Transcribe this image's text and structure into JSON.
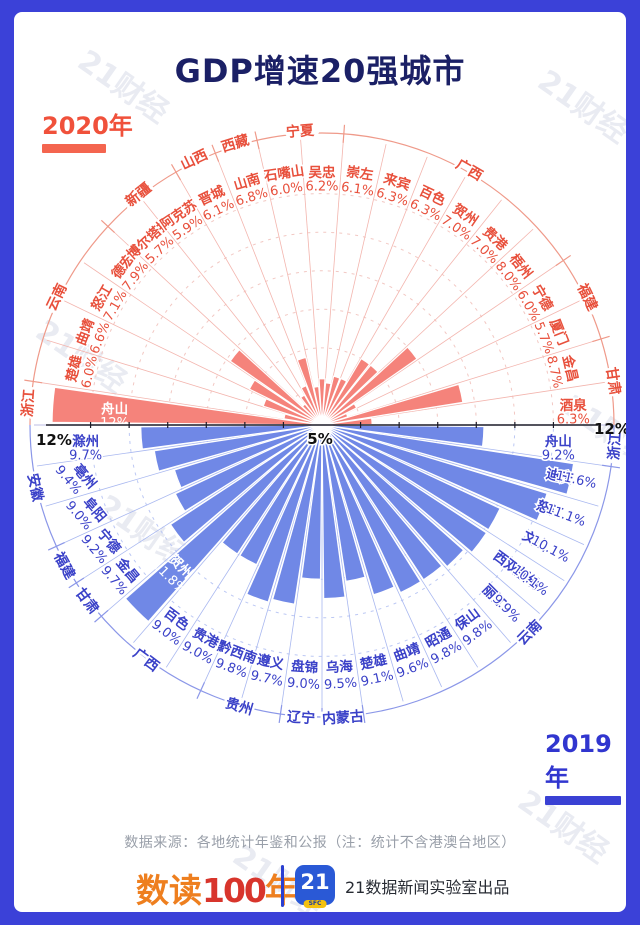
{
  "title": "GDP增速20强城市",
  "watermark": "21财经",
  "top_year": "2020年",
  "bottom_year": "2019年",
  "footer": {
    "source": "数据来源：各地统计年鉴和公报（注：统计不含港澳台地区）",
    "logo_left_a": "数读",
    "logo_left_b": "100",
    "logo_left_c": "年",
    "logo_21": "21",
    "logo_sfc": "SFC",
    "credit": "21数据新闻实验室出品"
  },
  "colors": {
    "frame": "#3b41d8",
    "title": "#1b2066",
    "red_bar": "#f5837b",
    "red_text": "#e8503c",
    "red_line": "#f3b5ae",
    "red_grid": "#f2c8c3",
    "red_arc": "#ef9a8a",
    "blue_bar": "#7088e6",
    "blue_text": "#3a41c8",
    "blue_line": "#a9b8f0",
    "blue_grid": "#bcc8f4",
    "blue_arc": "#8b97e8",
    "axis": "#1c1c28"
  },
  "chart_data": [
    {
      "type": "bar",
      "subtype": "polar-semicircle",
      "half": "top",
      "year_label": "2020年",
      "unit": "%",
      "r_axis": {
        "min": 5,
        "max": 12,
        "center_label": "5%",
        "end_label_left": "12%",
        "end_label_right": "12%"
      },
      "bars": [
        {
          "city": "舟山",
          "province": "浙江",
          "value": 12,
          "label": "12%",
          "label_inside": true
        },
        {
          "city": "楚雄",
          "province": "云南",
          "value": 6.0,
          "label": "6.0%"
        },
        {
          "city": "曲靖",
          "province": "云南",
          "value": 6.6,
          "label": "6.6%"
        },
        {
          "city": "怒江",
          "province": "云南",
          "value": 7.1,
          "label": "7.1%"
        },
        {
          "city": "德宏",
          "province": "云南",
          "value": 7.9,
          "label": "7.9%"
        },
        {
          "city": "博尔塔拉",
          "province": "新疆",
          "value": 5.7,
          "label": "5.7%"
        },
        {
          "city": "阿克苏",
          "province": "新疆",
          "value": 5.9,
          "label": "5.9%"
        },
        {
          "city": "晋城",
          "province": "山西",
          "value": 6.1,
          "label": "6.1%"
        },
        {
          "city": "山南",
          "province": "西藏",
          "value": 6.8,
          "label": "6.8%"
        },
        {
          "city": "石嘴山",
          "province": "宁夏",
          "value": 6.0,
          "label": "6.0%"
        },
        {
          "city": "吴忠",
          "province": "宁夏",
          "value": 6.2,
          "label": "6.2%"
        },
        {
          "city": "崇左",
          "province": "广西",
          "value": 6.1,
          "label": "6.1%"
        },
        {
          "city": "来宾",
          "province": "广西",
          "value": 6.3,
          "label": "6.3%"
        },
        {
          "city": "百色",
          "province": "广西",
          "value": 6.3,
          "label": "6.3%"
        },
        {
          "city": "贺州",
          "province": "广西",
          "value": 7.0,
          "label": "7.0%"
        },
        {
          "city": "贵港",
          "province": "广西",
          "value": 7.0,
          "label": "7.0%"
        },
        {
          "city": "梧州",
          "province": "广西",
          "value": 8.0,
          "label": "8.0%"
        },
        {
          "city": "宁德",
          "province": "福建",
          "value": 6.0,
          "label": "6.0%"
        },
        {
          "city": "厦门",
          "province": "福建",
          "value": 5.7,
          "label": "5.7%"
        },
        {
          "city": "金昌",
          "province": "甘肃",
          "value": 8.7,
          "label": "8.7%"
        },
        {
          "city": "酒泉",
          "province": "甘肃",
          "value": 6.3,
          "label": "6.3%"
        }
      ]
    },
    {
      "type": "bar",
      "subtype": "polar-semicircle",
      "half": "bottom",
      "year_label": "2019年",
      "unit": "%",
      "r_axis": {
        "min": 5,
        "max": 12,
        "center_label": "5%",
        "end_label_left": "12%",
        "end_label_right": "12%"
      },
      "bars": [
        {
          "city": "滁州",
          "province": "安徽",
          "value": 9.7,
          "label": "9.7%"
        },
        {
          "city": "亳州",
          "province": "安徽",
          "value": 9.4,
          "label": "9.4%"
        },
        {
          "city": "阜阳",
          "province": "安徽",
          "value": 9.0,
          "label": "9.0%"
        },
        {
          "city": "宁德",
          "province": "福建",
          "value": 9.2,
          "label": "9.2%"
        },
        {
          "city": "金昌",
          "province": "甘肃",
          "value": 9.7,
          "label": "9.7%"
        },
        {
          "city": "贺州",
          "province": "广西",
          "value": 11.8,
          "label": "11.8%",
          "label_inside": true
        },
        {
          "city": "百色",
          "province": "广西",
          "value": 9.0,
          "label": "9.0%"
        },
        {
          "city": "贵港",
          "province": "广西",
          "value": 9.0,
          "label": "9.0%"
        },
        {
          "city": "黔西南",
          "province": "贵州",
          "value": 9.8,
          "label": "9.8%"
        },
        {
          "city": "遵义",
          "province": "贵州",
          "value": 9.7,
          "label": "9.7%"
        },
        {
          "city": "盘锦",
          "province": "辽宁",
          "value": 9.0,
          "label": "9.0%"
        },
        {
          "city": "乌海",
          "province": "内蒙古",
          "value": 9.5,
          "label": "9.5%"
        },
        {
          "city": "楚雄",
          "province": "云南",
          "value": 9.1,
          "label": "9.1%"
        },
        {
          "city": "曲靖",
          "province": "云南",
          "value": 9.6,
          "label": "9.6%"
        },
        {
          "city": "昭通",
          "province": "云南",
          "value": 9.8,
          "label": "9.8%"
        },
        {
          "city": "保山",
          "province": "云南",
          "value": 9.8,
          "label": "9.8%"
        },
        {
          "city": "丽江",
          "province": "云南",
          "value": 9.9,
          "label": "9.9%"
        },
        {
          "city": "西双版纳",
          "province": "云南",
          "value": 10.1,
          "label": "10.1%"
        },
        {
          "city": "文山",
          "province": "云南",
          "value": 10.1,
          "label": "10.1%"
        },
        {
          "city": "怒江",
          "province": "云南",
          "value": 11.1,
          "label": "11.1%"
        },
        {
          "city": "迪庆",
          "province": "云南",
          "value": 11.6,
          "label": "11.6%"
        },
        {
          "city": "舟山",
          "province": "浙江",
          "value": 9.2,
          "label": "9.2%"
        }
      ]
    }
  ]
}
